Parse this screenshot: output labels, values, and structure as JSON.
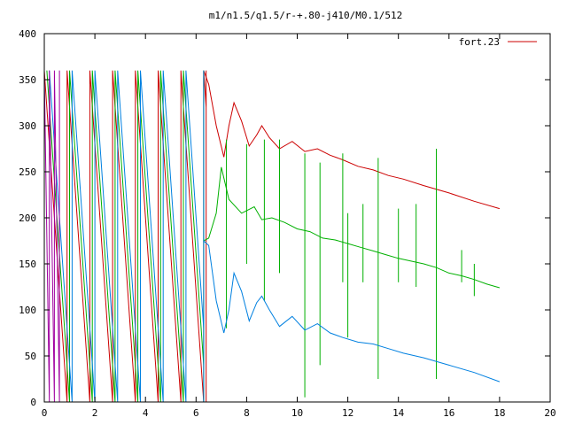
{
  "chart_data": {
    "type": "line",
    "title": "m1/n1.5/q1.5/r-+.80-j410/M0.1/512",
    "xlabel": "",
    "ylabel": "",
    "xlim": [
      0,
      20
    ],
    "ylim": [
      0,
      400
    ],
    "x_ticks": [
      "0",
      "2",
      "4",
      "6",
      "8",
      "10",
      "12",
      "14",
      "16",
      "18",
      "20"
    ],
    "y_ticks": [
      "0",
      "50",
      "100",
      "150",
      "200",
      "250",
      "300",
      "350",
      "400"
    ],
    "grid": false,
    "legend_position": "top-right",
    "legend": [
      {
        "label": "fort.23",
        "color": "#cc0000"
      }
    ],
    "series": [
      {
        "color": "#cc0000",
        "sawtooth": {
          "x_start": 0.0,
          "x_end": 6.4,
          "period": 0.9,
          "top": 360
        },
        "values": [
          [
            6.3,
            360
          ],
          [
            6.5,
            345
          ],
          [
            6.8,
            300
          ],
          [
            7.1,
            266
          ],
          [
            7.3,
            300
          ],
          [
            7.5,
            325
          ],
          [
            7.8,
            305
          ],
          [
            8.1,
            278
          ],
          [
            8.4,
            290
          ],
          [
            8.6,
            300
          ],
          [
            8.9,
            287
          ],
          [
            9.3,
            275
          ],
          [
            9.8,
            283
          ],
          [
            10.3,
            272
          ],
          [
            10.8,
            275
          ],
          [
            11.3,
            268
          ],
          [
            11.8,
            263
          ],
          [
            12.4,
            256
          ],
          [
            13,
            252
          ],
          [
            13.6,
            246
          ],
          [
            14.2,
            242
          ],
          [
            15,
            235
          ],
          [
            16,
            227
          ],
          [
            17,
            218
          ],
          [
            18,
            210
          ]
        ]
      },
      {
        "color": "#00b000",
        "sawtooth": {
          "x_start": 0.1,
          "x_end": 6.3,
          "period": 0.9,
          "top": 360
        },
        "values": [
          [
            6.3,
            175
          ],
          [
            6.5,
            178
          ],
          [
            6.8,
            205
          ],
          [
            7.0,
            255
          ],
          [
            7.3,
            220
          ],
          [
            7.8,
            205
          ],
          [
            8.3,
            212
          ],
          [
            8.6,
            198
          ],
          [
            9.0,
            200
          ],
          [
            9.5,
            195
          ],
          [
            10.0,
            188
          ],
          [
            10.5,
            185
          ],
          [
            11.0,
            178
          ],
          [
            11.5,
            176
          ],
          [
            12.0,
            172
          ],
          [
            12.5,
            168
          ],
          [
            13.0,
            164
          ],
          [
            13.5,
            160
          ],
          [
            14.0,
            156
          ],
          [
            14.5,
            153
          ],
          [
            15.0,
            150
          ],
          [
            15.5,
            146
          ],
          [
            16.0,
            140
          ],
          [
            16.5,
            137
          ],
          [
            17.0,
            133
          ],
          [
            17.5,
            128
          ],
          [
            18.0,
            124
          ]
        ],
        "spikes": [
          [
            7.2,
            80,
            285
          ],
          [
            8.0,
            150,
            280
          ],
          [
            8.7,
            110,
            285
          ],
          [
            9.3,
            140,
            285
          ],
          [
            10.3,
            5,
            270
          ],
          [
            10.9,
            40,
            260
          ],
          [
            11.8,
            130,
            270
          ],
          [
            12.0,
            70,
            205
          ],
          [
            12.6,
            130,
            215
          ],
          [
            13.2,
            25,
            265
          ],
          [
            14.0,
            130,
            210
          ],
          [
            14.7,
            125,
            215
          ],
          [
            15.5,
            25,
            275
          ],
          [
            16.5,
            130,
            165
          ],
          [
            17.0,
            115,
            150
          ]
        ]
      },
      {
        "color": "#0080e0",
        "sawtooth": {
          "x_start": 0.2,
          "x_end": 6.3,
          "period": 0.9,
          "top": 360
        },
        "values": [
          [
            6.3,
            175
          ],
          [
            6.5,
            170
          ],
          [
            6.8,
            110
          ],
          [
            7.1,
            75
          ],
          [
            7.3,
            100
          ],
          [
            7.5,
            140
          ],
          [
            7.8,
            120
          ],
          [
            8.1,
            88
          ],
          [
            8.4,
            108
          ],
          [
            8.6,
            115
          ],
          [
            8.9,
            100
          ],
          [
            9.3,
            82
          ],
          [
            9.8,
            93
          ],
          [
            10.3,
            78
          ],
          [
            10.8,
            85
          ],
          [
            11.3,
            75
          ],
          [
            11.8,
            70
          ],
          [
            12.4,
            65
          ],
          [
            13,
            63
          ],
          [
            13.6,
            58
          ],
          [
            14.2,
            53
          ],
          [
            15,
            48
          ],
          [
            16,
            40
          ],
          [
            17,
            32
          ],
          [
            18,
            22
          ]
        ]
      },
      {
        "color": "#a000a0",
        "sawtooth": {
          "x_start": 0.0,
          "x_end": 0.6,
          "period": 0.2,
          "top": 360
        },
        "values": []
      }
    ]
  }
}
